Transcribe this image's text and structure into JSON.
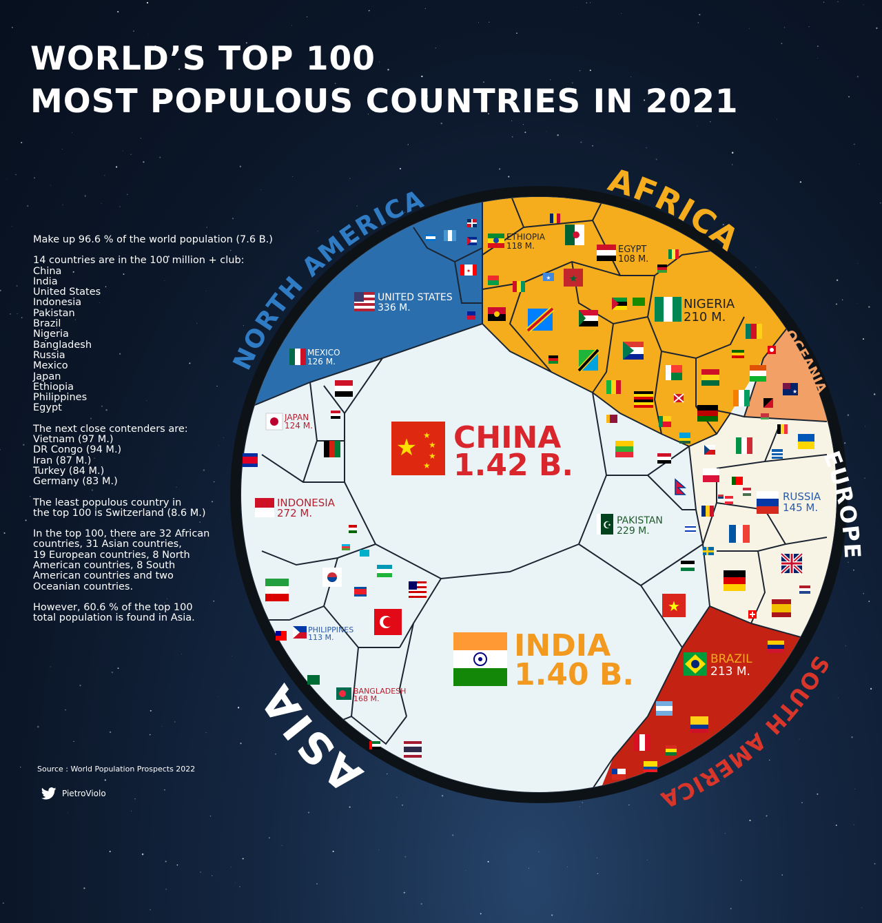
{
  "title": {
    "line1": "WORLD’S TOP 100",
    "line2": "MOST POPULOUS COUNTRIES IN 2021"
  },
  "info": {
    "summary": "Make up 96.6 % of the world population (7.6 B.)",
    "club_heading": "14 countries are in the 100 million + club:",
    "club": [
      "China",
      "India",
      "United States",
      "Indonesia",
      "Pakistan",
      "Brazil",
      "Nigeria",
      "Bangladesh",
      "Russia",
      "Mexico",
      "Japan",
      "Ethiopia",
      "Philippines",
      "Egypt"
    ],
    "contenders_heading": "The next close contenders are:",
    "contenders": [
      "Vietnam (97 M.)",
      "DR Congo (94 M.)",
      "Iran (87 M.)",
      "Turkey (84 M.)",
      "Germany (83 M.)"
    ],
    "least": [
      "The least populous country in",
      "the top 100 is Switzerland (8.6 M.)"
    ],
    "breakdown": [
      "In the top 100, there are 32 African",
      "countries, 31 Asian countries,",
      "19 European countries, 8 North",
      "American countries, 8 South",
      "American countries and two",
      "Oceanian countries."
    ],
    "asia_share": [
      "However, 60.6 % of the top 100",
      "total population is found in Asia."
    ]
  },
  "source": "Source : World Population Prospects  2022",
  "twitter_handle": "PietroViolo",
  "regions": {
    "north_america": "NORTH AMERICA",
    "africa": "AFRICA",
    "oceania": "OCEANIA",
    "europe": "EUROPE",
    "south_america": "SOUTH AMERICA",
    "asia": "ASIA"
  },
  "colors": {
    "north_america": "#2a6ead",
    "africa": "#f5ac1d",
    "oceania": "#f2a066",
    "europe": "#f7f4e6",
    "south_america": "#c42212",
    "asia": "#eaf3f6",
    "china_text": "#d8262c",
    "india_text": "#f29a1f",
    "ring": "#0d1217"
  },
  "countries": {
    "china": {
      "name": "CHINA",
      "pop": "1.42 B."
    },
    "india": {
      "name": "INDIA",
      "pop": "1.40 B."
    },
    "united_states": {
      "name": "UNITED STATES",
      "pop": "336 M."
    },
    "indonesia": {
      "name": "INDONESIA",
      "pop": "272 M."
    },
    "pakistan": {
      "name": "PAKISTAN",
      "pop": "229 M."
    },
    "brazil": {
      "name": "BRAZIL",
      "pop": "213 M."
    },
    "nigeria": {
      "name": "NIGERIA",
      "pop": "210 M."
    },
    "bangladesh": {
      "name": "BANGLADESH",
      "pop": "168 M."
    },
    "russia": {
      "name": "RUSSIA",
      "pop": "145 M."
    },
    "mexico": {
      "name": "MEXICO",
      "pop": "126 M."
    },
    "japan": {
      "name": "JAPAN",
      "pop": "124 M."
    },
    "ethiopia": {
      "name": "ETHIOPIA",
      "pop": "118 M."
    },
    "philippines": {
      "name": "PHILIPPINES",
      "pop": "113 M."
    },
    "egypt": {
      "name": "EGYPT",
      "pop": "108 M."
    }
  }
}
